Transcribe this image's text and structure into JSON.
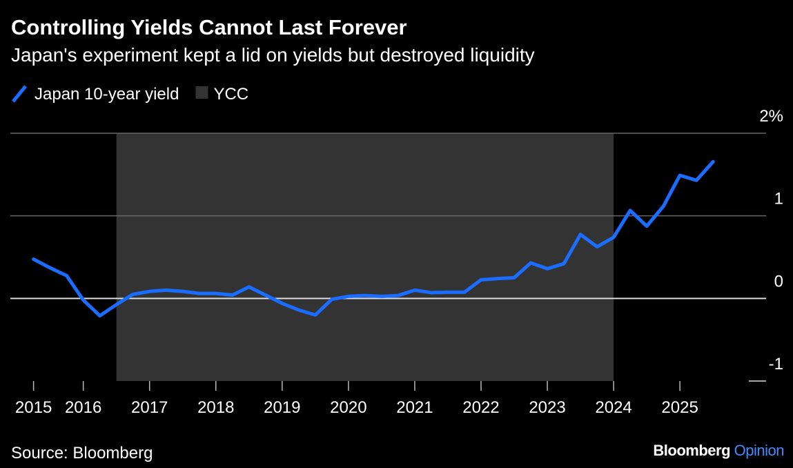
{
  "chart_data": {
    "type": "line",
    "title": "Controlling Yields Cannot Last Forever",
    "subtitle": "Japan's experiment kept a lid on yields but destroyed liquidity",
    "source": "Source: Bloomberg",
    "logo": "Bloomberg",
    "logo_accent": "Opinion",
    "x": [
      2015.25,
      2015.5,
      2015.75,
      2016,
      2016.25,
      2016.5,
      2016.75,
      2017,
      2017.25,
      2017.5,
      2017.75,
      2018,
      2018.25,
      2018.5,
      2018.75,
      2019,
      2019.25,
      2019.5,
      2019.75,
      2020,
      2020.25,
      2020.5,
      2020.75,
      2021,
      2021.25,
      2021.5,
      2021.75,
      2022,
      2022.25,
      2022.5,
      2022.75,
      2023,
      2023.25,
      2023.5,
      2023.75,
      2024,
      2024.25,
      2024.5,
      2024.75,
      2025,
      2025.25,
      2025.5
    ],
    "series": [
      {
        "name": "Japan 10-year yield",
        "color": "#1a6dff",
        "values": [
          0.475,
          0.37,
          0.275,
          -0.02,
          -0.21,
          -0.075,
          0.05,
          0.085,
          0.1,
          0.085,
          0.06,
          0.06,
          0.04,
          0.14,
          0.04,
          -0.06,
          -0.14,
          -0.2,
          -0.01,
          0.025,
          0.035,
          0.025,
          0.035,
          0.1,
          0.07,
          0.075,
          0.075,
          0.225,
          0.24,
          0.25,
          0.43,
          0.36,
          0.42,
          0.775,
          0.625,
          0.74,
          1.065,
          0.875,
          1.115,
          1.49,
          1.43,
          1.655
        ]
      }
    ],
    "shaded_region": {
      "name": "YCC",
      "color": "#333333",
      "x": [
        2016.5,
        2024
      ]
    },
    "xlim": [
      2014.9,
      2026.3
    ],
    "xticks": [
      {
        "value": 2015.25,
        "label": "2015"
      },
      2016,
      2017,
      2018,
      2019,
      2020,
      2021,
      2022,
      2023,
      2024,
      2025
    ],
    "ylim": [
      -1,
      2
    ],
    "yticks": [
      -1,
      0,
      1,
      {
        "value": 2,
        "label": "2%"
      }
    ],
    "grid": true
  }
}
